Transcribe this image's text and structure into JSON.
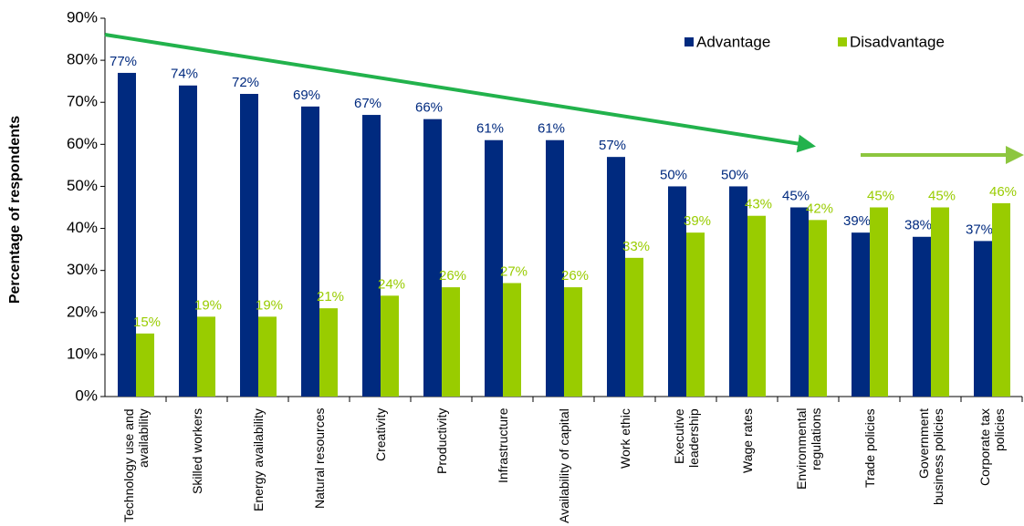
{
  "chart_data": {
    "type": "bar",
    "y_label": "Percentage of respondents",
    "categories": [
      "Technology use and availability",
      "Skilled workers",
      "Energy availability",
      "Natural resources",
      "Creativity",
      "Productivity",
      "Infrastructure",
      "Availability of capital",
      "Work ethic",
      "Executive leadership",
      "Wage rates",
      "Environmental regulations",
      "Trade policies",
      "Government business policies",
      "Corporate tax policies"
    ],
    "series": [
      {
        "name": "Advantage",
        "color": "#002a7f",
        "values": [
          77,
          74,
          72,
          69,
          67,
          66,
          61,
          61,
          57,
          50,
          50,
          45,
          39,
          38,
          37
        ],
        "value_labels": [
          "77%",
          "74%",
          "72%",
          "69%",
          "67%",
          "66%",
          "61%",
          "61%",
          "57%",
          "50%",
          "50%",
          "45%",
          "39%",
          "38%",
          "37%"
        ]
      },
      {
        "name": "Disadvantage",
        "color": "#99cc00",
        "values": [
          15,
          19,
          19,
          21,
          24,
          26,
          27,
          26,
          33,
          39,
          43,
          42,
          45,
          45,
          46
        ],
        "value_labels": [
          "15%",
          "19%",
          "19%",
          "21%",
          "24%",
          "26%",
          "27%",
          "26%",
          "33%",
          "39%",
          "43%",
          "42%",
          "45%",
          "45%",
          "46%"
        ]
      }
    ],
    "ylim": [
      0,
      90
    ],
    "yticks": [
      {
        "value": 0,
        "label": "0%"
      },
      {
        "value": 10,
        "label": "10%"
      },
      {
        "value": 20,
        "label": "20%"
      },
      {
        "value": 30,
        "label": "30%"
      },
      {
        "value": 40,
        "label": "40%"
      },
      {
        "value": 50,
        "label": "50%"
      },
      {
        "value": 60,
        "label": "60%"
      },
      {
        "value": 70,
        "label": "70%"
      },
      {
        "value": 80,
        "label": "80%"
      },
      {
        "value": 90,
        "label": "90%"
      }
    ],
    "legend": "top-right"
  }
}
